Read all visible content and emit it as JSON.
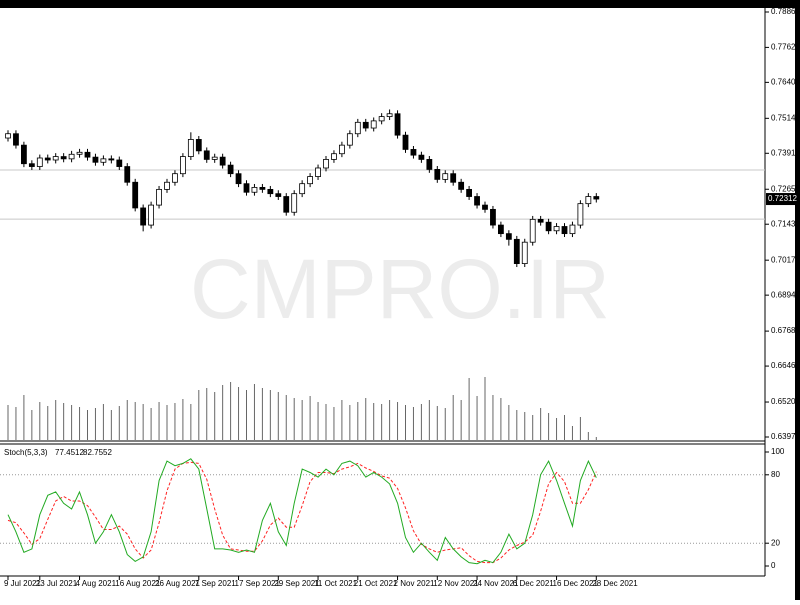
{
  "chart_data": {
    "type": "candlestick",
    "watermark": "CMPRO.IR",
    "categories": [
      "9 Jul 2021",
      null,
      null,
      null,
      "23 Jul 2021",
      null,
      null,
      null,
      null,
      "4 Aug 2021",
      null,
      null,
      null,
      null,
      "16 Aug 2021",
      null,
      null,
      null,
      null,
      "26 Aug 2021",
      null,
      null,
      null,
      null,
      "7 Sep 2021",
      null,
      null,
      null,
      null,
      "17 Sep 2021",
      null,
      null,
      null,
      null,
      "29 Sep 2021",
      null,
      null,
      null,
      null,
      "11 Oct 2021",
      null,
      null,
      null,
      null,
      "21 Oct 2021",
      null,
      null,
      null,
      null,
      "2 Nov 2021",
      null,
      null,
      null,
      null,
      "12 Nov 2021",
      null,
      null,
      null,
      null,
      "24 Nov 2021",
      null,
      null,
      null,
      null,
      "6 Dec 2021",
      null,
      null,
      null,
      null,
      "16 Dec 2021",
      null,
      null,
      null,
      null,
      "28 Dec 2021"
    ],
    "open": [
      0.7445,
      0.746,
      0.742,
      0.7355,
      0.7345,
      0.7375,
      0.7368,
      0.738,
      0.7372,
      0.7388,
      0.7395,
      0.7378,
      0.736,
      0.7372,
      0.7368,
      0.7345,
      0.729,
      0.72,
      0.714,
      0.721,
      0.7265,
      0.729,
      0.732,
      0.738,
      0.744,
      0.74,
      0.737,
      0.7378,
      0.735,
      0.732,
      0.7285,
      0.7255,
      0.7272,
      0.7265,
      0.725,
      0.724,
      0.7185,
      0.725,
      0.7285,
      0.731,
      0.734,
      0.737,
      0.739,
      0.742,
      0.746,
      0.75,
      0.748,
      0.7505,
      0.752,
      0.753,
      0.7455,
      0.7405,
      0.7385,
      0.737,
      0.7335,
      0.73,
      0.732,
      0.729,
      0.7265,
      0.724,
      0.721,
      0.7195,
      0.714,
      0.711,
      0.709,
      0.7005,
      0.708,
      0.716,
      0.715,
      0.712,
      0.7135,
      0.711,
      0.714,
      0.7215,
      0.724
    ],
    "high": [
      0.7472,
      0.7472,
      0.7432,
      0.7367,
      0.7387,
      0.7387,
      0.7392,
      0.7392,
      0.74,
      0.7407,
      0.7407,
      0.739,
      0.7384,
      0.7384,
      0.738,
      0.7357,
      0.7302,
      0.7212,
      0.7222,
      0.7277,
      0.7302,
      0.7332,
      0.7392,
      0.7465,
      0.7452,
      0.7412,
      0.739,
      0.739,
      0.7362,
      0.7332,
      0.7297,
      0.7284,
      0.7284,
      0.7277,
      0.7262,
      0.7252,
      0.7262,
      0.7297,
      0.7322,
      0.7352,
      0.7382,
      0.7402,
      0.7432,
      0.7472,
      0.7512,
      0.7512,
      0.7517,
      0.7532,
      0.7545,
      0.7542,
      0.7467,
      0.7417,
      0.7397,
      0.7382,
      0.7347,
      0.7332,
      0.7332,
      0.7302,
      0.7277,
      0.7252,
      0.7222,
      0.7207,
      0.7152,
      0.7122,
      0.7102,
      0.7092,
      0.7172,
      0.7172,
      0.7162,
      0.7147,
      0.7147,
      0.7152,
      0.7227,
      0.7252,
      0.7252
    ],
    "low": [
      0.7433,
      0.7408,
      0.7343,
      0.7333,
      0.7333,
      0.7356,
      0.7356,
      0.736,
      0.736,
      0.7376,
      0.7366,
      0.7348,
      0.7348,
      0.7356,
      0.7333,
      0.7278,
      0.7188,
      0.7118,
      0.7128,
      0.7198,
      0.7253,
      0.7278,
      0.7308,
      0.7368,
      0.7388,
      0.7358,
      0.7358,
      0.7338,
      0.7308,
      0.7273,
      0.7243,
      0.7243,
      0.7253,
      0.7238,
      0.7228,
      0.7173,
      0.7173,
      0.7238,
      0.7273,
      0.7298,
      0.7328,
      0.7358,
      0.7378,
      0.7408,
      0.7448,
      0.7468,
      0.7468,
      0.7493,
      0.7508,
      0.7443,
      0.7393,
      0.7373,
      0.7358,
      0.7323,
      0.7288,
      0.7288,
      0.7278,
      0.7253,
      0.7228,
      0.7198,
      0.7183,
      0.7128,
      0.7098,
      0.7068,
      0.6993,
      0.6993,
      0.7068,
      0.7138,
      0.7108,
      0.7108,
      0.7098,
      0.7098,
      0.7128,
      0.7203,
      0.7219
    ],
    "close": [
      0.746,
      0.742,
      0.7355,
      0.7345,
      0.7375,
      0.7368,
      0.738,
      0.7372,
      0.7388,
      0.7395,
      0.7378,
      0.736,
      0.7372,
      0.7368,
      0.7345,
      0.729,
      0.72,
      0.714,
      0.721,
      0.7265,
      0.729,
      0.732,
      0.738,
      0.744,
      0.74,
      0.737,
      0.7378,
      0.735,
      0.732,
      0.7285,
      0.7255,
      0.7272,
      0.7265,
      0.725,
      0.724,
      0.7185,
      0.725,
      0.7285,
      0.731,
      0.734,
      0.737,
      0.739,
      0.742,
      0.746,
      0.75,
      0.748,
      0.7505,
      0.752,
      0.753,
      0.7455,
      0.7405,
      0.7385,
      0.737,
      0.7335,
      0.73,
      0.732,
      0.729,
      0.7265,
      0.724,
      0.721,
      0.7195,
      0.714,
      0.711,
      0.709,
      0.7005,
      0.708,
      0.716,
      0.715,
      0.712,
      0.7135,
      0.711,
      0.714,
      0.7215,
      0.724,
      0.72312
    ],
    "ylim": [
      0.63975,
      0.78865
    ],
    "yticks": [
      0.78865,
      0.77625,
      {
        "value": 0.764,
        "label": "0.76400"
      },
      {
        "value": 0.7514,
        "label": "0.75140"
      },
      0.73915,
      0.72655,
      {
        "value": 0.7143,
        "label": "0.71430"
      },
      {
        "value": 0.7017,
        "label": "0.70170"
      },
      0.68945,
      0.67685,
      {
        "value": 0.6646,
        "label": "0.66460"
      },
      {
        "value": 0.652,
        "label": "0.65200"
      },
      0.63975
    ],
    "hlines": [
      0.7333,
      0.7161
    ],
    "volume": [
      35,
      33,
      45,
      30,
      38,
      34,
      40,
      37,
      35,
      33,
      30,
      32,
      36,
      30,
      34,
      40,
      38,
      36,
      32,
      38,
      35,
      37,
      41,
      36,
      50,
      52,
      48,
      55,
      58,
      53,
      50,
      56,
      52,
      50,
      48,
      45,
      42,
      40,
      44,
      38,
      36,
      33,
      40,
      35,
      38,
      42,
      37,
      36,
      40,
      38,
      35,
      33,
      36,
      40,
      34,
      32,
      45,
      40,
      62,
      44,
      63,
      45,
      42,
      35,
      30,
      28,
      25,
      32,
      27,
      22,
      25,
      14,
      23,
      8,
      3
    ],
    "volume_lim": [
      0,
      100
    ],
    "stoch": {
      "title": "Stoch(5,3,3)",
      "ylim": [
        0,
        100
      ],
      "yticks": [
        100,
        80,
        20,
        0
      ],
      "levels": [
        80,
        20
      ],
      "k_color": "#22aa22",
      "d_color": "#ff2222",
      "k": [
        45,
        30,
        12,
        15,
        45,
        62,
        65,
        55,
        50,
        65,
        45,
        20,
        30,
        45,
        30,
        10,
        4,
        8,
        30,
        75,
        92,
        88,
        90,
        94,
        85,
        50,
        15,
        15,
        14,
        12,
        14,
        12,
        40,
        55,
        30,
        18,
        55,
        85,
        82,
        78,
        85,
        80,
        90,
        92,
        88,
        78,
        82,
        78,
        72,
        55,
        25,
        12,
        20,
        12,
        5,
        25,
        15,
        8,
        3,
        2,
        5,
        3,
        12,
        28,
        15,
        20,
        45,
        80,
        92,
        75,
        55,
        35,
        75,
        92,
        77.4512
      ],
      "d": [
        40,
        38,
        29,
        19,
        24,
        41,
        57,
        61,
        57,
        57,
        53,
        43,
        32,
        32,
        35,
        28,
        15,
        7,
        14,
        38,
        66,
        85,
        90,
        91,
        90,
        76,
        50,
        27,
        15,
        14,
        13,
        13,
        22,
        36,
        42,
        34,
        34,
        53,
        74,
        82,
        82,
        81,
        85,
        87,
        90,
        86,
        83,
        79,
        77,
        68,
        51,
        31,
        19,
        15,
        12,
        14,
        15,
        16,
        9,
        4,
        3,
        3,
        7,
        14,
        18,
        21,
        27,
        48,
        72,
        82,
        74,
        55,
        55,
        67,
        82.7552
      ]
    }
  }
}
